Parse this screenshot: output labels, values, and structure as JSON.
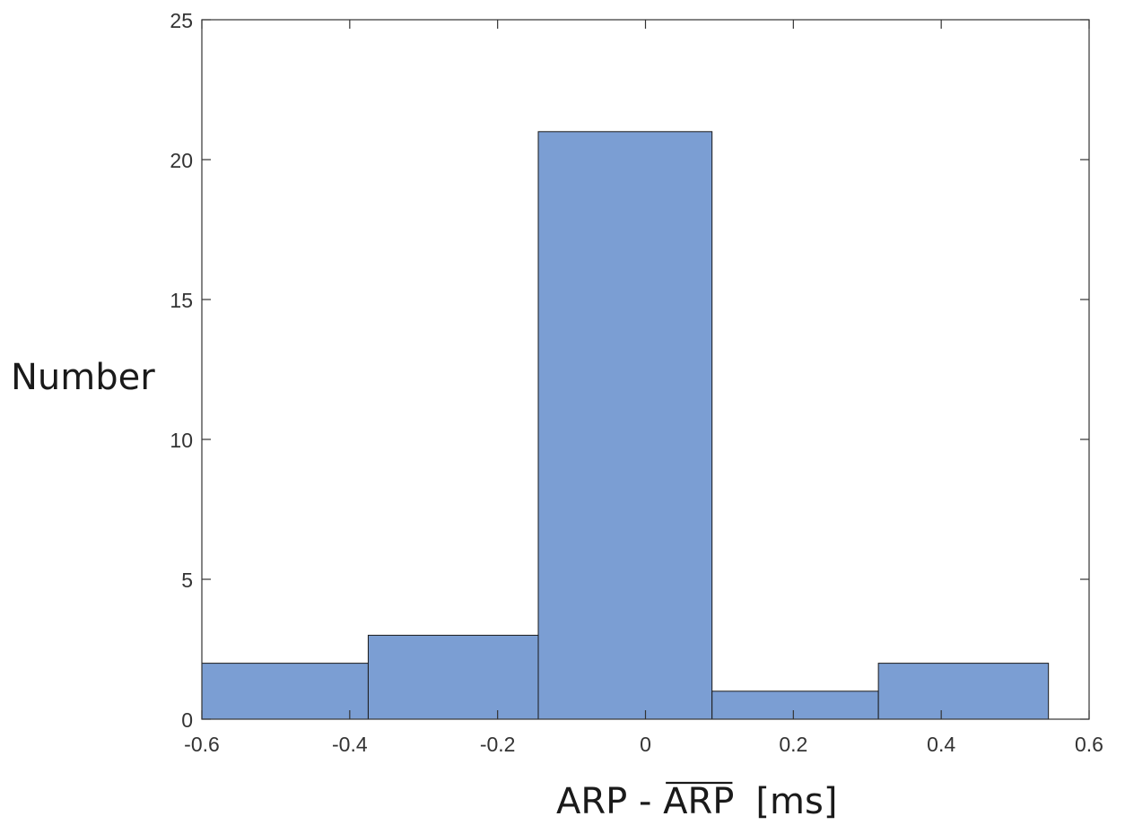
{
  "chart_data": {
    "type": "bar",
    "bins": [
      {
        "x0": -0.6,
        "x1": -0.375,
        "count": 2
      },
      {
        "x0": -0.375,
        "x1": -0.145,
        "count": 3
      },
      {
        "x0": -0.145,
        "x1": 0.09,
        "count": 21
      },
      {
        "x0": 0.09,
        "x1": 0.315,
        "count": 1
      },
      {
        "x0": 0.315,
        "x1": 0.545,
        "count": 2
      }
    ],
    "xlim": [
      -0.6,
      0.6
    ],
    "ylim": [
      0,
      25
    ],
    "xticks": [
      -0.6,
      -0.4,
      -0.2,
      0,
      0.2,
      0.4,
      0.6
    ],
    "xtick_labels": [
      "-0.6",
      "-0.4",
      "-0.2",
      "0",
      "0.2",
      "0.4",
      "0.6"
    ],
    "yticks": [
      0,
      5,
      10,
      15,
      20,
      25
    ],
    "ytick_labels": [
      "0",
      "5",
      "10",
      "15",
      "20",
      "25"
    ],
    "xlabel_left": "ARP - ",
    "xlabel_bar": "ARP",
    "xlabel_unit": "[ms]",
    "ylabel": "Number",
    "bar_color": "#7b9ed3",
    "grid": false
  }
}
